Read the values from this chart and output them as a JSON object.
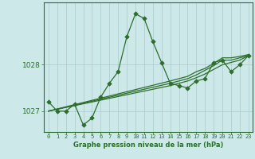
{
  "title": "Graphe pression niveau de la mer (hPa)",
  "bg_color": "#cce8e8",
  "grid_color": "#aacccc",
  "line_color": "#2d6e2d",
  "marker_color": "#2d6e2d",
  "xlim": [
    -0.5,
    23.5
  ],
  "ylim": [
    1026.55,
    1029.35
  ],
  "yticks": [
    1027,
    1028
  ],
  "xticks": [
    0,
    1,
    2,
    3,
    4,
    5,
    6,
    7,
    8,
    9,
    10,
    11,
    12,
    13,
    14,
    15,
    16,
    17,
    18,
    19,
    20,
    21,
    22,
    23
  ],
  "series1_x": [
    0,
    1,
    2,
    3,
    4,
    5,
    6,
    7,
    8,
    9,
    10,
    11,
    12,
    13,
    14,
    15,
    16,
    17,
    18,
    19,
    20,
    21,
    22,
    23
  ],
  "series1_y": [
    1027.2,
    1027.0,
    1027.0,
    1027.15,
    1026.7,
    1026.85,
    1027.3,
    1027.6,
    1027.85,
    1028.6,
    1029.1,
    1029.0,
    1028.5,
    1028.05,
    1027.6,
    1027.55,
    1027.5,
    1027.65,
    1027.7,
    1028.05,
    1028.1,
    1027.85,
    1028.0,
    1028.2
  ],
  "series2_x": [
    0,
    14,
    15,
    16,
    17,
    18,
    19,
    20,
    21,
    22,
    23
  ],
  "series2_y": [
    1027.0,
    1027.55,
    1027.6,
    1027.65,
    1027.72,
    1027.8,
    1027.9,
    1028.0,
    1028.05,
    1028.1,
    1028.2
  ],
  "series3_x": [
    0,
    14,
    15,
    16,
    17,
    18,
    19,
    20,
    21,
    22,
    23
  ],
  "series3_y": [
    1027.0,
    1027.6,
    1027.65,
    1027.7,
    1027.78,
    1027.88,
    1027.98,
    1028.1,
    1028.1,
    1028.15,
    1028.2
  ],
  "series4_x": [
    0,
    14,
    15,
    16,
    17,
    18,
    19,
    20,
    21,
    22,
    23
  ],
  "series4_y": [
    1027.0,
    1027.65,
    1027.7,
    1027.75,
    1027.85,
    1027.92,
    1028.03,
    1028.15,
    1028.15,
    1028.18,
    1028.22
  ]
}
